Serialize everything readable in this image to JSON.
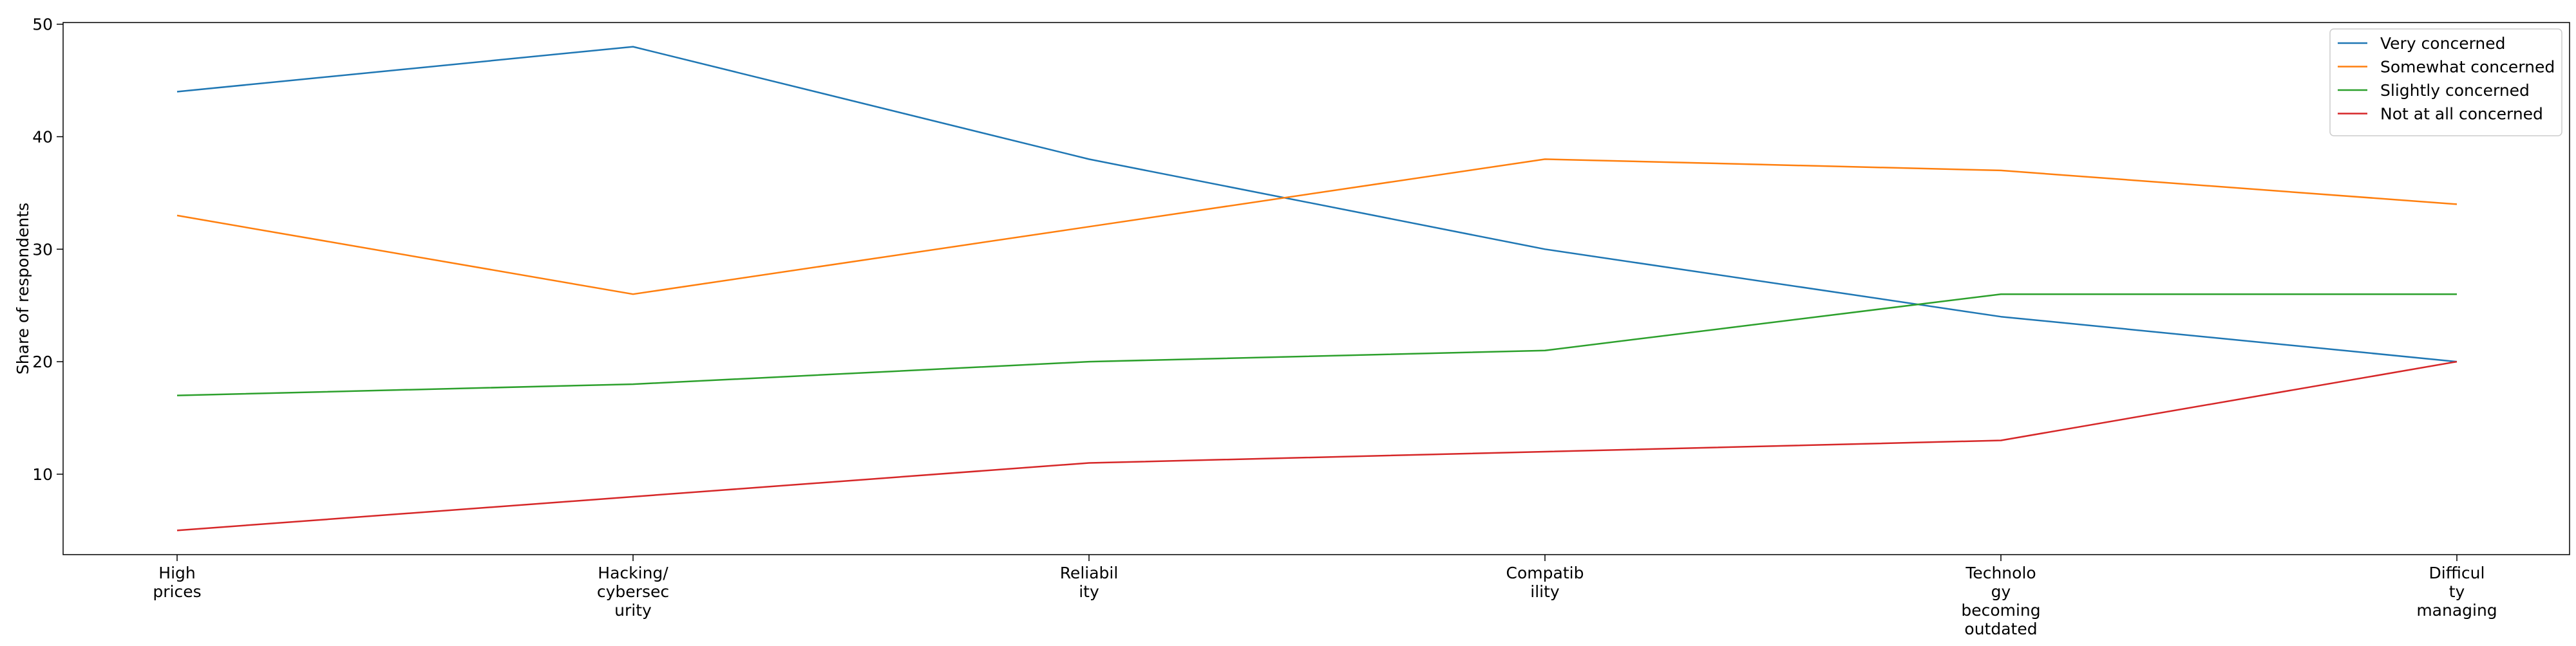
{
  "chart_data": {
    "type": "line",
    "categories": [
      [
        "High",
        "prices"
      ],
      [
        "Hacking/",
        "cybersec",
        "urity"
      ],
      [
        "Reliabil",
        "ity"
      ],
      [
        "Compatib",
        "ility"
      ],
      [
        "Technolo",
        "gy",
        "becoming",
        "outdated"
      ],
      [
        "Difficul",
        "ty",
        "managing"
      ]
    ],
    "series": [
      {
        "name": "Very concerned",
        "color": "#1f77b4",
        "values": [
          44,
          48,
          38,
          30,
          24,
          20
        ]
      },
      {
        "name": "Somewhat concerned",
        "color": "#ff7f0e",
        "values": [
          33,
          26,
          32,
          38,
          37,
          34
        ]
      },
      {
        "name": "Slightly concerned",
        "color": "#2ca02c",
        "values": [
          17,
          18,
          20,
          21,
          26,
          26
        ]
      },
      {
        "name": "Not at all concerned",
        "color": "#d62728",
        "values": [
          5,
          8,
          11,
          12,
          13,
          20
        ]
      }
    ],
    "xlabel": "",
    "ylabel": "Share of respondents",
    "ylim": [
      2.85,
      50.15
    ],
    "yticks": [
      10,
      20,
      30,
      40,
      50
    ],
    "grid": false,
    "legend_position": "top-right"
  }
}
